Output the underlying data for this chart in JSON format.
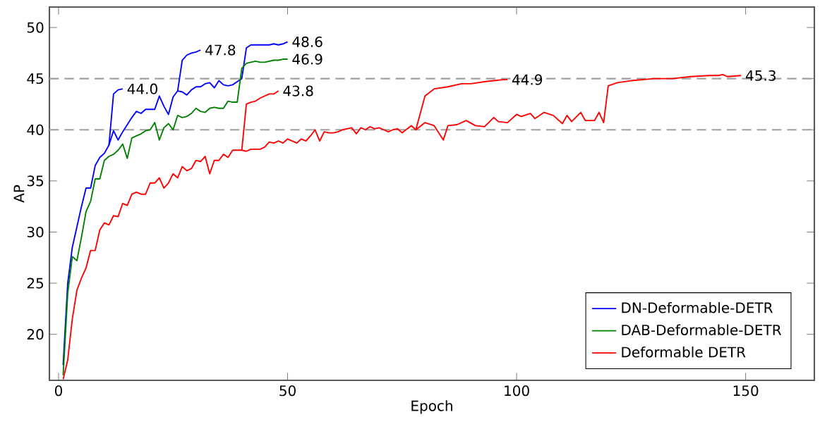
{
  "chart_data": {
    "type": "line",
    "xlabel": "Epoch",
    "ylabel": "AP",
    "xlim": [
      -2,
      165
    ],
    "ylim": [
      15.5,
      52
    ],
    "xticks": [
      0,
      50,
      100,
      150
    ],
    "yticks": [
      20,
      25,
      30,
      35,
      40,
      45,
      50
    ],
    "legend": "bottom right",
    "marker": "none",
    "line_style": "solid",
    "ref_lines": [
      {
        "axis": "y",
        "value": 40,
        "color": "#a0a0a0",
        "line_style": "dashed"
      },
      {
        "axis": "y",
        "value": 45,
        "color": "#a0a0a0",
        "line_style": "dashed"
      }
    ],
    "annotations": [
      {
        "text": "44.0",
        "x": 14,
        "y": 44.0
      },
      {
        "text": "47.8",
        "x": 31,
        "y": 47.8
      },
      {
        "text": "48.6",
        "x": 50,
        "y": 48.6
      },
      {
        "text": "46.9",
        "x": 50,
        "y": 46.9
      },
      {
        "text": "43.8",
        "x": 48,
        "y": 43.8
      },
      {
        "text": "44.9",
        "x": 98,
        "y": 44.9
      },
      {
        "text": "45.3",
        "x": 149,
        "y": 45.3
      }
    ],
    "series": [
      {
        "name": "DN-Deformable-DETR",
        "color": "#0000ff",
        "x": [
          1,
          2,
          3,
          4,
          5,
          6,
          7,
          8,
          9,
          10,
          11,
          12,
          13,
          14,
          15,
          16,
          17,
          18,
          19,
          20,
          21,
          22,
          23,
          24,
          25,
          26,
          27,
          28,
          29,
          30,
          31,
          32,
          33,
          34,
          35,
          36,
          37,
          38,
          39,
          40,
          41,
          42,
          43,
          44,
          45,
          46,
          47,
          48,
          49,
          50
        ],
        "values": [
          17,
          25,
          28.5,
          30.5,
          32.5,
          34.3,
          34.3,
          36.5,
          37.3,
          37.7,
          38.5,
          39.9,
          39,
          39.8,
          40.5,
          41.2,
          41.8,
          41.6,
          42,
          42,
          42,
          43.3,
          42.3,
          41.5,
          43.2,
          43.8,
          43.7,
          43.4,
          43.9,
          44.2,
          44.2,
          44.5,
          44.6,
          44.1,
          44.8,
          44.4,
          44.3,
          44.4,
          44.7,
          45,
          48,
          48.3,
          48.3,
          48.3,
          48.3,
          48.3,
          48.4,
          48.3,
          48.4,
          48.6
        ]
      },
      {
        "name": "DAB-Deformable-DETR",
        "color": "#008000",
        "x": [
          1,
          2,
          3,
          4,
          5,
          6,
          7,
          8,
          9,
          10,
          11,
          12,
          13,
          14,
          15,
          16,
          17,
          18,
          19,
          20,
          21,
          22,
          23,
          24,
          25,
          26,
          27,
          28,
          29,
          30,
          31,
          32,
          33,
          34,
          35,
          36,
          37,
          38,
          39,
          40,
          41,
          42,
          43,
          44,
          45,
          46,
          47,
          48,
          49,
          50
        ],
        "values": [
          16,
          24,
          27.6,
          27.2,
          29.5,
          32,
          33,
          35.2,
          35.2,
          37,
          37.4,
          37.6,
          38,
          38.6,
          37.2,
          39.2,
          39.4,
          39.6,
          39.9,
          40,
          40.7,
          39,
          40.2,
          40.6,
          40,
          41.4,
          41.2,
          41.3,
          41.6,
          42.1,
          41.8,
          41.7,
          42.1,
          42.2,
          42.1,
          42.1,
          42.8,
          42.7,
          42.7,
          46,
          46.5,
          46.6,
          46.7,
          46.6,
          46.6,
          46.7,
          46.8,
          46.8,
          46.9,
          46.9
        ]
      },
      {
        "name": "Deformable DETR",
        "color": "#ff0000",
        "x": [
          1,
          2,
          3,
          4,
          5,
          6,
          7,
          8,
          9,
          10,
          11,
          12,
          13,
          14,
          15,
          16,
          17,
          18,
          19,
          20,
          21,
          22,
          23,
          24,
          25,
          26,
          27,
          28,
          29,
          30,
          31,
          32,
          33,
          34,
          35,
          36,
          37,
          38,
          39,
          40,
          41,
          42,
          43,
          44,
          45,
          46,
          47,
          48,
          49,
          50,
          51,
          52,
          53,
          54,
          55,
          56,
          57,
          58,
          59,
          60,
          61,
          62,
          63,
          64,
          65,
          66,
          67,
          68,
          69,
          70,
          71,
          72,
          73,
          74,
          75,
          77,
          78,
          80,
          82,
          84,
          85,
          87,
          89,
          91,
          93,
          95,
          96,
          98,
          100,
          101,
          103,
          104,
          106,
          108,
          110,
          111,
          112,
          114,
          115,
          117,
          118,
          119,
          120,
          122,
          125,
          130,
          134,
          138,
          142,
          144,
          145,
          146,
          149
        ],
        "values": [
          15.6,
          17.5,
          21.5,
          24.3,
          25.5,
          26.5,
          28.2,
          28.2,
          30.2,
          30.9,
          30.7,
          31.6,
          31.5,
          32.8,
          32.6,
          33.7,
          33.9,
          33.7,
          33.7,
          34.8,
          34.8,
          35.3,
          34.3,
          34.8,
          35.7,
          35.3,
          36.4,
          36,
          36.2,
          37,
          36.9,
          37.4,
          35.7,
          37,
          37,
          37.6,
          37.3,
          38,
          38,
          38,
          37.9,
          38.1,
          38.1,
          38.1,
          38.3,
          38.8,
          38.7,
          38.9,
          38.7,
          39.1,
          38.9,
          38.7,
          39.1,
          38.9,
          39.4,
          40,
          38.9,
          39.8,
          39.7,
          39.7,
          39.8,
          40,
          40.1,
          40.2,
          39.6,
          40.2,
          40,
          40.3,
          40.1,
          40.2,
          40,
          39.8,
          40,
          40.1,
          39.7,
          40.4,
          40,
          40.7,
          40.4,
          39,
          40.4,
          40.5,
          40.9,
          40.4,
          40.3,
          41.2,
          40.8,
          40.7,
          41.5,
          41.3,
          41.6,
          41.1,
          41.7,
          41.4,
          40.6,
          41.4,
          40.8,
          41.7,
          40.9,
          40.9,
          41.7,
          40.7,
          44.3,
          44.6,
          44.8,
          45,
          45,
          45.2,
          45.3,
          45.3,
          45.4,
          45.2,
          45.3
        ]
      },
      {
        "color": "#0000ff",
        "x": [
          11,
          12,
          13,
          14
        ],
        "values": [
          38.5,
          43.5,
          43.9,
          44.0
        ]
      },
      {
        "color": "#0000ff",
        "x": [
          26,
          27,
          28,
          29,
          30,
          31
        ],
        "values": [
          43.8,
          46.8,
          47.3,
          47.5,
          47.6,
          47.8
        ]
      },
      {
        "color": "#ff0000",
        "x": [
          40,
          41,
          42,
          43,
          44,
          45,
          46,
          47,
          48
        ],
        "values": [
          38,
          42.5,
          42.7,
          42.8,
          43.1,
          43.3,
          43.5,
          43.5,
          43.8
        ]
      },
      {
        "color": "#ff0000",
        "x": [
          78,
          80,
          82,
          85,
          88,
          90,
          93,
          95,
          97,
          98
        ],
        "values": [
          40,
          43.3,
          44,
          44.2,
          44.5,
          44.5,
          44.7,
          44.8,
          44.9,
          44.9
        ]
      }
    ]
  }
}
